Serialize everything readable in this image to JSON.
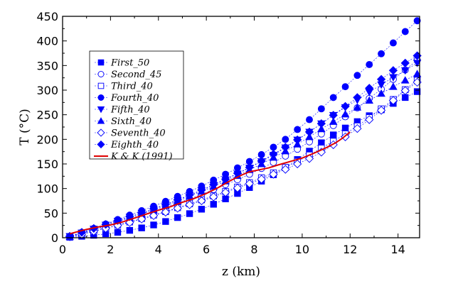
{
  "chart_data": {
    "type": "scatter",
    "xlabel": "z (km)",
    "ylabel": "T (°C)",
    "xlim": [
      0,
      14.9
    ],
    "ylim": [
      0,
      450
    ],
    "xticks": [
      0,
      2,
      4,
      6,
      8,
      10,
      12,
      14
    ],
    "yticks": [
      0,
      50,
      100,
      150,
      200,
      250,
      300,
      350,
      400,
      450
    ],
    "grid": false,
    "legend_position": "top-left",
    "colors": {
      "series": "#0000ff",
      "reference": "#e00000",
      "axes": "#000000"
    },
    "x": [
      0.3,
      0.8,
      1.3,
      1.8,
      2.3,
      2.8,
      3.3,
      3.8,
      4.3,
      4.8,
      5.3,
      5.8,
      6.3,
      6.8,
      7.3,
      7.8,
      8.3,
      8.8,
      9.3,
      9.8,
      10.3,
      10.8,
      11.3,
      11.8,
      12.3,
      12.8,
      13.3,
      13.8,
      14.3,
      14.8
    ],
    "series": [
      {
        "name": "First_50",
        "marker": "filled-square",
        "values": [
          1,
          3,
          5,
          8,
          11,
          15,
          20,
          26,
          33,
          41,
          49,
          58,
          68,
          79,
          90,
          102,
          115,
          128,
          143,
          159,
          176,
          193,
          209,
          223,
          236,
          248,
          260,
          273,
          285,
          297
        ]
      },
      {
        "name": "Second_45",
        "marker": "open-circle",
        "values": [
          2,
          8,
          15,
          22,
          30,
          38,
          46,
          54,
          62,
          71,
          79,
          88,
          98,
          108,
          118,
          129,
          141,
          153,
          166,
          180,
          195,
          211,
          228,
          246,
          264,
          283,
          302,
          322,
          341,
          361
        ]
      },
      {
        "name": "Third_40",
        "marker": "open-square",
        "values": [
          2,
          7,
          13,
          19,
          26,
          32,
          39,
          46,
          53,
          61,
          69,
          77,
          85,
          94,
          103,
          112,
          122,
          132,
          143,
          155,
          168,
          182,
          196,
          211,
          227,
          244,
          262,
          281,
          301,
          320
        ]
      },
      {
        "name": "Fourth_40",
        "marker": "filled-circle",
        "values": [
          3,
          11,
          19,
          28,
          37,
          46,
          55,
          64,
          74,
          84,
          94,
          105,
          117,
          129,
          142,
          155,
          169,
          184,
          200,
          220,
          240,
          262,
          285,
          307,
          330,
          352,
          374,
          396,
          419,
          441
        ]
      },
      {
        "name": "Fifth_40",
        "marker": "filled-triangle-down",
        "values": [
          3,
          10,
          18,
          26,
          34,
          42,
          50,
          58,
          67,
          76,
          86,
          96,
          107,
          118,
          130,
          142,
          155,
          168,
          183,
          199,
          215,
          232,
          249,
          265,
          280,
          296,
          311,
          326,
          340,
          355
        ]
      },
      {
        "name": "Sixth_40",
        "marker": "filled-triangle-up",
        "values": [
          2,
          9,
          16,
          24,
          32,
          40,
          48,
          56,
          65,
          74,
          84,
          94,
          104,
          115,
          126,
          138,
          150,
          163,
          176,
          190,
          205,
          221,
          236,
          251,
          265,
          279,
          293,
          307,
          320,
          333
        ]
      },
      {
        "name": "Seventh_40",
        "marker": "open-diamond",
        "values": [
          2,
          7,
          13,
          19,
          25,
          31,
          38,
          45,
          52,
          60,
          67,
          75,
          83,
          92,
          101,
          110,
          119,
          129,
          139,
          150,
          161,
          174,
          189,
          205,
          222,
          240,
          259,
          279,
          299,
          316
        ]
      },
      {
        "name": "Eighth_40",
        "marker": "filled-diamond",
        "values": [
          3,
          11,
          19,
          27,
          35,
          43,
          51,
          59,
          68,
          77,
          87,
          97,
          108,
          119,
          131,
          143,
          156,
          170,
          184,
          199,
          215,
          232,
          249,
          267,
          285,
          304,
          322,
          340,
          355,
          370
        ]
      }
    ],
    "reference": {
      "name": "K & K (1991)",
      "x": [
        0.3,
        0.6,
        1.0,
        1.5,
        2.0,
        2.5,
        3.0,
        3.5,
        4.0,
        4.5,
        5.0,
        5.5,
        6.0,
        6.5,
        7.0,
        7.5,
        7.8,
        8.2,
        8.6,
        9.0,
        9.5,
        10.0,
        10.5,
        11.0,
        11.4,
        11.7,
        12.0
      ],
      "y": [
        8,
        12,
        17,
        22,
        26,
        32,
        40,
        48,
        56,
        63,
        72,
        80,
        90,
        102,
        116,
        128,
        134,
        138,
        142,
        148,
        155,
        162,
        172,
        183,
        193,
        203,
        215
      ]
    }
  }
}
